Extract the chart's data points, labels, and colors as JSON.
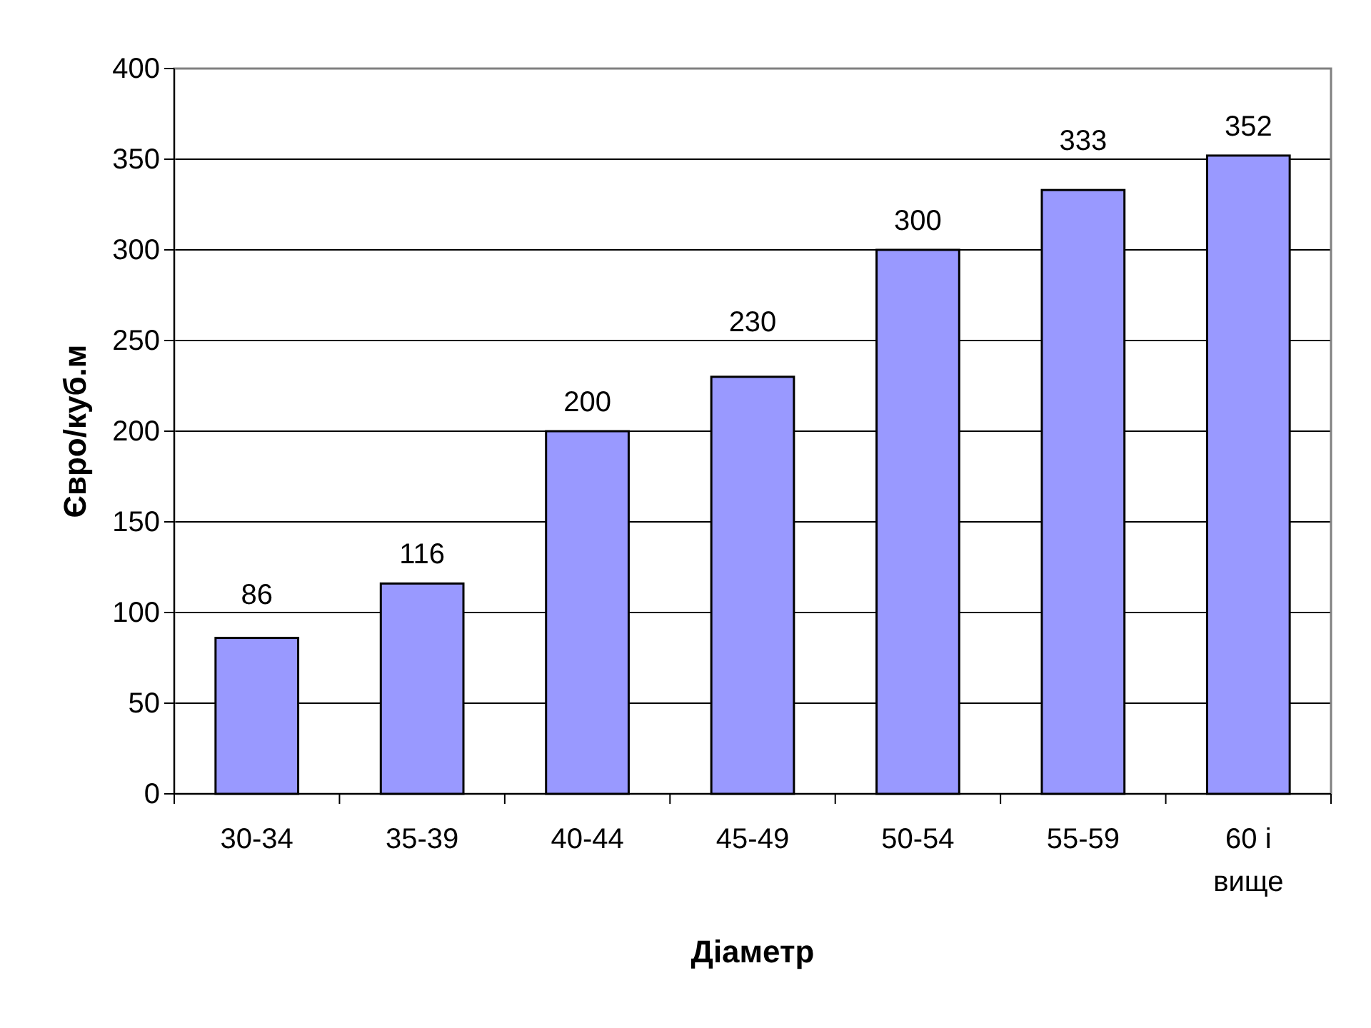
{
  "chart_data": {
    "type": "bar",
    "xlabel": "Діаметр",
    "ylabel": "Євро/куб.м",
    "categories": [
      "30-34",
      "35-39",
      "40-44",
      "45-49",
      "50-54",
      "55-59",
      "60 і вище"
    ],
    "values": [
      86,
      116,
      200,
      230,
      300,
      333,
      352
    ],
    "color": "#9999ff",
    "ylim": [
      0,
      400
    ],
    "yticks": [
      0,
      50,
      100,
      150,
      200,
      250,
      300,
      350,
      400
    ],
    "grid": "y",
    "data_labels": true
  }
}
